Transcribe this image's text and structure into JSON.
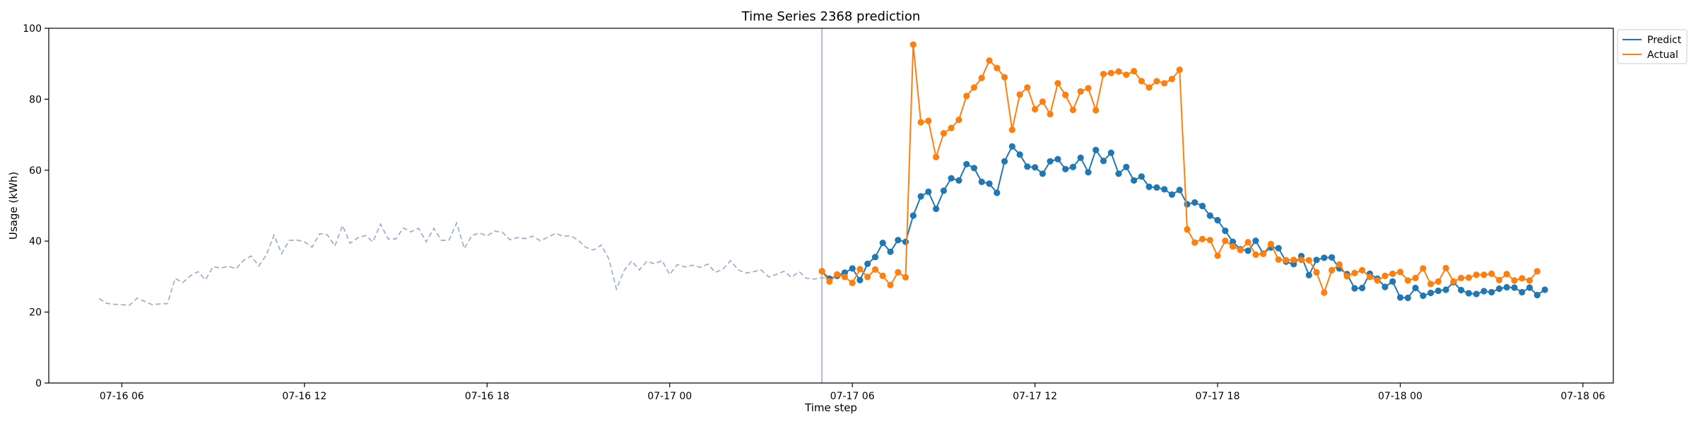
{
  "chart_data": {
    "type": "line",
    "title": "Time Series 2368 prediction",
    "xlabel": "Time step",
    "ylabel": "Usage (kWh)",
    "ylim": [
      0,
      100
    ],
    "xlim": [
      "2024-07-16T03:36",
      "2024-07-18T07:00"
    ],
    "y_ticks": [
      0,
      20,
      40,
      60,
      80,
      100
    ],
    "x_ticks": [
      {
        "t": "2024-07-16T06:00",
        "label": "07-16 06"
      },
      {
        "t": "2024-07-16T12:00",
        "label": "07-16 12"
      },
      {
        "t": "2024-07-16T18:00",
        "label": "07-16 18"
      },
      {
        "t": "2024-07-17T00:00",
        "label": "07-17 00"
      },
      {
        "t": "2024-07-17T06:00",
        "label": "07-17 06"
      },
      {
        "t": "2024-07-17T12:00",
        "label": "07-17 12"
      },
      {
        "t": "2024-07-17T18:00",
        "label": "07-17 18"
      },
      {
        "t": "2024-07-18T00:00",
        "label": "07-18 00"
      },
      {
        "t": "2024-07-18T06:00",
        "label": "07-18 06"
      }
    ],
    "grid": false,
    "legend_position": "top-right",
    "forecast_start": "2024-07-17T05:00",
    "history": {
      "start": "2024-07-16T05:15",
      "step_minutes": 15,
      "color": "#9fb2cf",
      "values": [
        23.8,
        22.5,
        22.2,
        22.1,
        21.9,
        23.9,
        23,
        22.1,
        22.3,
        22.4,
        29.5,
        28.3,
        30.2,
        31.4,
        29.1,
        32.8,
        32.4,
        32.9,
        32.2,
        34.6,
        35.8,
        33,
        36.1,
        41.7,
        36.5,
        40.2,
        40.3,
        39.8,
        38.3,
        42.1,
        41.8,
        38.6,
        44.4,
        39.4,
        40.9,
        41.6,
        39.8,
        44.8,
        40.6,
        40.6,
        43.7,
        42.6,
        43.6,
        39.8,
        43.6,
        40.2,
        40.3,
        45.1,
        37.9,
        41.6,
        42.3,
        41.5,
        42.8,
        42.5,
        40.4,
        41,
        40.7,
        41.4,
        40.1,
        41.1,
        42.2,
        41.4,
        41.5,
        40.2,
        38.2,
        37.5,
        38.9,
        35,
        26.5,
        31.7,
        34.4,
        31.9,
        34.3,
        33.6,
        34.5,
        30.6,
        33.4,
        32.7,
        33.2,
        32.6,
        33.5,
        31.2,
        32.1,
        34.5,
        31.9,
        31,
        31.4,
        31.9,
        29.9,
        30.6,
        31.5,
        29.8,
        31.4,
        29.5,
        29.3,
        29.7,
        29.1,
        30.2,
        31.5
      ]
    },
    "series": [
      {
        "name": "Predict",
        "color": "#1f77b4",
        "start": "2024-07-17T05:00",
        "step_minutes": 15,
        "values": [
          31.5,
          29.4,
          30.2,
          31.1,
          32.3,
          29,
          33.6,
          35.5,
          39.5,
          37,
          40.3,
          39.8,
          47.2,
          52.6,
          53.9,
          49.1,
          54.2,
          57.7,
          57.1,
          61.7,
          60.6,
          56.7,
          56.2,
          53.6,
          62.5,
          66.7,
          64.4,
          61,
          60.8,
          59,
          62.5,
          63.1,
          60.3,
          60.9,
          63.5,
          59.4,
          65.7,
          62.6,
          64.9,
          59,
          60.9,
          57.1,
          58.2,
          55.3,
          55.1,
          54.6,
          53.1,
          54.4,
          50.4,
          50.9,
          49.9,
          47.2,
          45.9,
          42.9,
          39.8,
          37.7,
          37.3,
          40.1,
          36.5,
          38.2,
          38,
          34.2,
          33.5,
          35.8,
          30.4,
          34.7,
          35.3,
          35.4,
          32.3,
          30.7,
          26.7,
          26.8,
          30.8,
          29.4,
          27.1,
          28.6,
          24.1,
          24,
          26.8,
          24.6,
          25.4,
          26,
          26.3,
          28.4,
          26.2,
          25.3,
          25.1,
          25.9,
          25.6,
          26.6,
          27,
          26.9,
          25.6,
          26.9,
          24.8,
          26.3
        ]
      },
      {
        "name": "Actual",
        "color": "#ff7f0e",
        "start": "2024-07-17T05:00",
        "step_minutes": 15,
        "values": [
          31.5,
          28.6,
          30.6,
          29.9,
          28.2,
          32.1,
          29.9,
          32,
          30.2,
          27.6,
          31.2,
          29.8,
          95.4,
          73.5,
          73.9,
          63.7,
          70.4,
          71.9,
          74.2,
          80.9,
          83.3,
          86,
          90.9,
          88.8,
          86.2,
          71.4,
          81.3,
          83.3,
          77.2,
          79.3,
          75.8,
          84.5,
          81.2,
          77,
          82.2,
          83.1,
          76.9,
          87.1,
          87.4,
          87.8,
          86.9,
          87.9,
          85.1,
          83.3,
          85.1,
          84.5,
          85.7,
          88.3,
          43.3,
          39.6,
          40.6,
          40.3,
          35.9,
          40.1,
          38.5,
          37.5,
          39.7,
          36.2,
          36.4,
          39.2,
          34.8,
          34.6,
          34.7,
          34.7,
          34.6,
          31.2,
          25.5,
          31.8,
          33.4,
          30.1,
          31,
          31.8,
          29.9,
          28.9,
          30.2,
          30.8,
          31.3,
          28.9,
          29.6,
          32.3,
          27.9,
          28.6,
          32.4,
          28.6,
          29.6,
          29.7,
          30.5,
          30.5,
          30.8,
          29,
          30.7,
          28.9,
          29.5,
          28.9,
          31.5
        ]
      }
    ]
  }
}
